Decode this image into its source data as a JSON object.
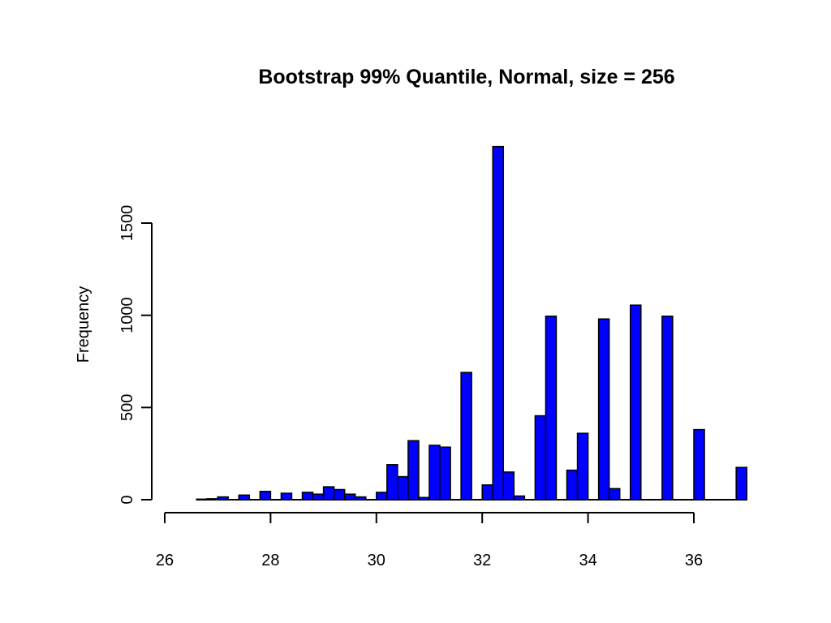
{
  "chart_data": {
    "type": "bar",
    "title": "Bootstrap 99% Quantile, Normal, size = 256",
    "xlabel": "",
    "ylabel": "Frequency",
    "bar_color": "#0000FF",
    "bin_width": 0.2,
    "xlim": [
      26,
      37
    ],
    "ylim": [
      0,
      1920
    ],
    "x_ticks": [
      26,
      28,
      30,
      32,
      34,
      36
    ],
    "x_tick_labels": [
      "26",
      "28",
      "30",
      "32",
      "34",
      "36"
    ],
    "y_ticks": [
      0,
      500,
      1000,
      1500
    ],
    "y_tick_labels": [
      "0",
      "500",
      "1000",
      "1500"
    ],
    "grid": false,
    "bins": [
      {
        "x0": 26.6,
        "x1": 26.8,
        "count": 3
      },
      {
        "x0": 26.8,
        "x1": 27.0,
        "count": 5
      },
      {
        "x0": 27.0,
        "x1": 27.2,
        "count": 15
      },
      {
        "x0": 27.4,
        "x1": 27.6,
        "count": 25
      },
      {
        "x0": 27.8,
        "x1": 28.0,
        "count": 45
      },
      {
        "x0": 28.2,
        "x1": 28.4,
        "count": 35
      },
      {
        "x0": 28.6,
        "x1": 28.8,
        "count": 40
      },
      {
        "x0": 28.8,
        "x1": 29.0,
        "count": 30
      },
      {
        "x0": 29.0,
        "x1": 29.2,
        "count": 70
      },
      {
        "x0": 29.2,
        "x1": 29.4,
        "count": 55
      },
      {
        "x0": 29.4,
        "x1": 29.6,
        "count": 30
      },
      {
        "x0": 29.6,
        "x1": 29.8,
        "count": 15
      },
      {
        "x0": 30.0,
        "x1": 30.2,
        "count": 40
      },
      {
        "x0": 30.2,
        "x1": 30.4,
        "count": 190
      },
      {
        "x0": 30.4,
        "x1": 30.6,
        "count": 125
      },
      {
        "x0": 30.6,
        "x1": 30.8,
        "count": 320
      },
      {
        "x0": 30.8,
        "x1": 31.0,
        "count": 12
      },
      {
        "x0": 31.0,
        "x1": 31.2,
        "count": 295
      },
      {
        "x0": 31.2,
        "x1": 31.4,
        "count": 285
      },
      {
        "x0": 31.6,
        "x1": 31.8,
        "count": 690
      },
      {
        "x0": 32.0,
        "x1": 32.2,
        "count": 80
      },
      {
        "x0": 32.2,
        "x1": 32.4,
        "count": 1915
      },
      {
        "x0": 32.4,
        "x1": 32.6,
        "count": 150
      },
      {
        "x0": 32.6,
        "x1": 32.8,
        "count": 20
      },
      {
        "x0": 33.0,
        "x1": 33.2,
        "count": 455
      },
      {
        "x0": 33.2,
        "x1": 33.4,
        "count": 995
      },
      {
        "x0": 33.6,
        "x1": 33.8,
        "count": 160
      },
      {
        "x0": 33.8,
        "x1": 34.0,
        "count": 360
      },
      {
        "x0": 34.2,
        "x1": 34.4,
        "count": 980
      },
      {
        "x0": 34.4,
        "x1": 34.6,
        "count": 60
      },
      {
        "x0": 34.8,
        "x1": 35.0,
        "count": 1055
      },
      {
        "x0": 35.4,
        "x1": 35.6,
        "count": 995
      },
      {
        "x0": 36.0,
        "x1": 36.2,
        "count": 380
      },
      {
        "x0": 36.8,
        "x1": 37.0,
        "count": 175
      }
    ]
  }
}
